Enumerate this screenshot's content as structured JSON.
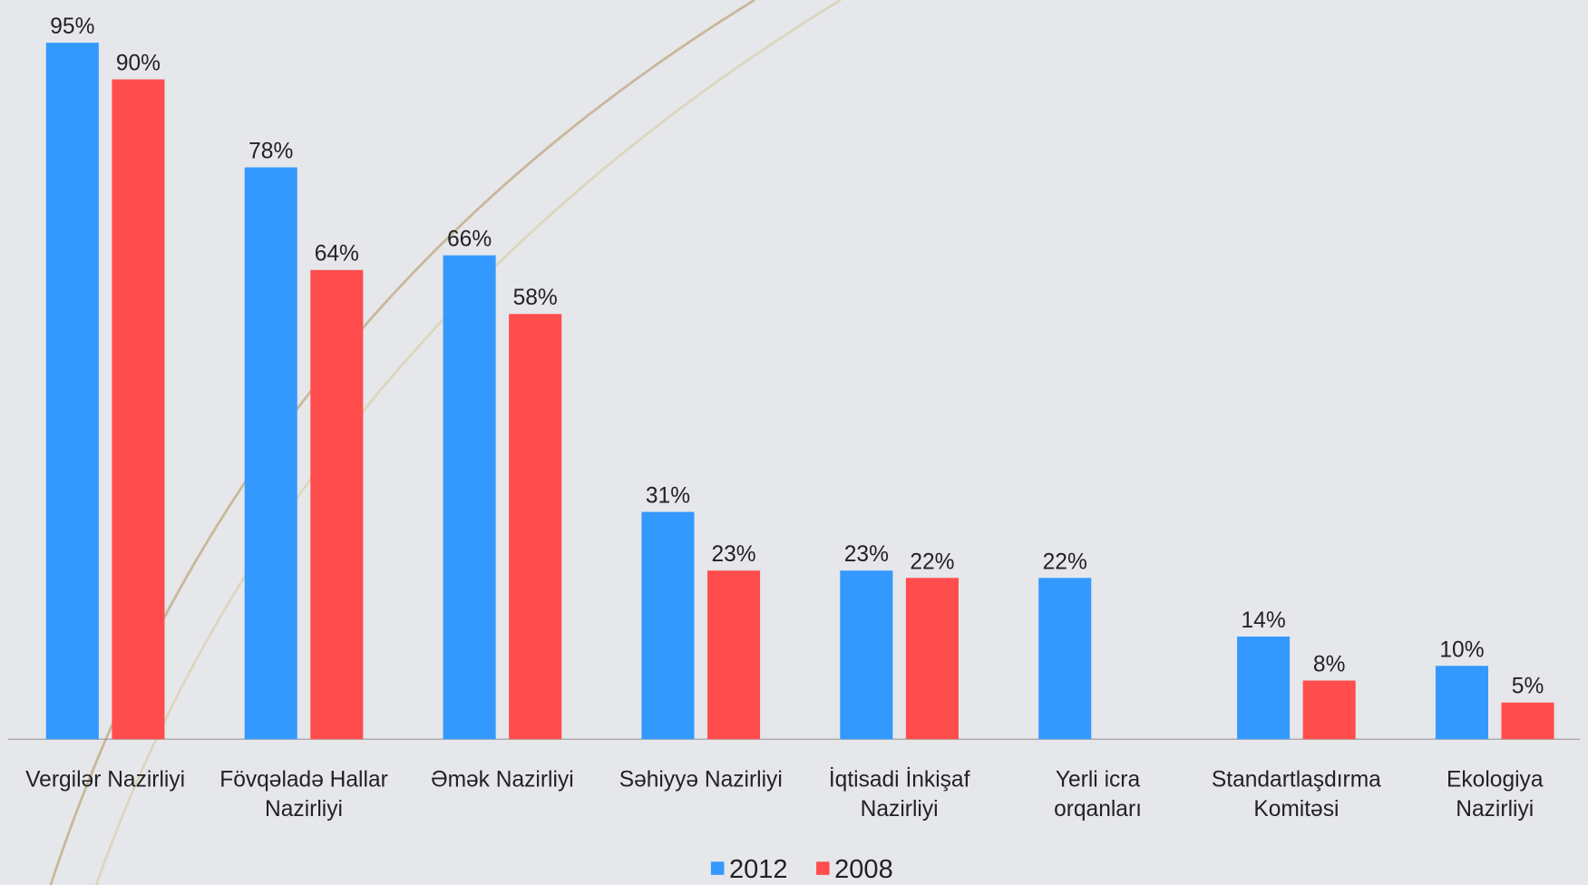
{
  "chart_data": {
    "type": "bar",
    "categories": [
      "Vergilər Nazirliyi",
      "Fövqəladə Hallar\nNazirliyi",
      "Əmək Nazirliyi",
      "Səhiyyə Nazirliyi",
      "İqtisadi İnkişaf\nNazirliyi",
      "Yerli icra\norqanları",
      "Standartlaşdırma\nKomitəsi",
      "Ekologiya\nNazirliyi"
    ],
    "series": [
      {
        "name": "2012",
        "color": "#3399ff",
        "values": [
          95,
          78,
          66,
          31,
          23,
          22,
          14,
          10
        ],
        "value_labels": [
          "95%",
          "78%",
          "66%",
          "31%",
          "23%",
          "22%",
          "14%",
          "10%"
        ]
      },
      {
        "name": "2008",
        "color": "#ff4d4d",
        "values": [
          90,
          64,
          58,
          23,
          22,
          null,
          8,
          5
        ],
        "value_labels": [
          "90%",
          "64%",
          "58%",
          "23%",
          "22%",
          null,
          "8%",
          "5%"
        ]
      }
    ],
    "ylim": [
      0,
      100
    ],
    "legend": "bottom"
  }
}
